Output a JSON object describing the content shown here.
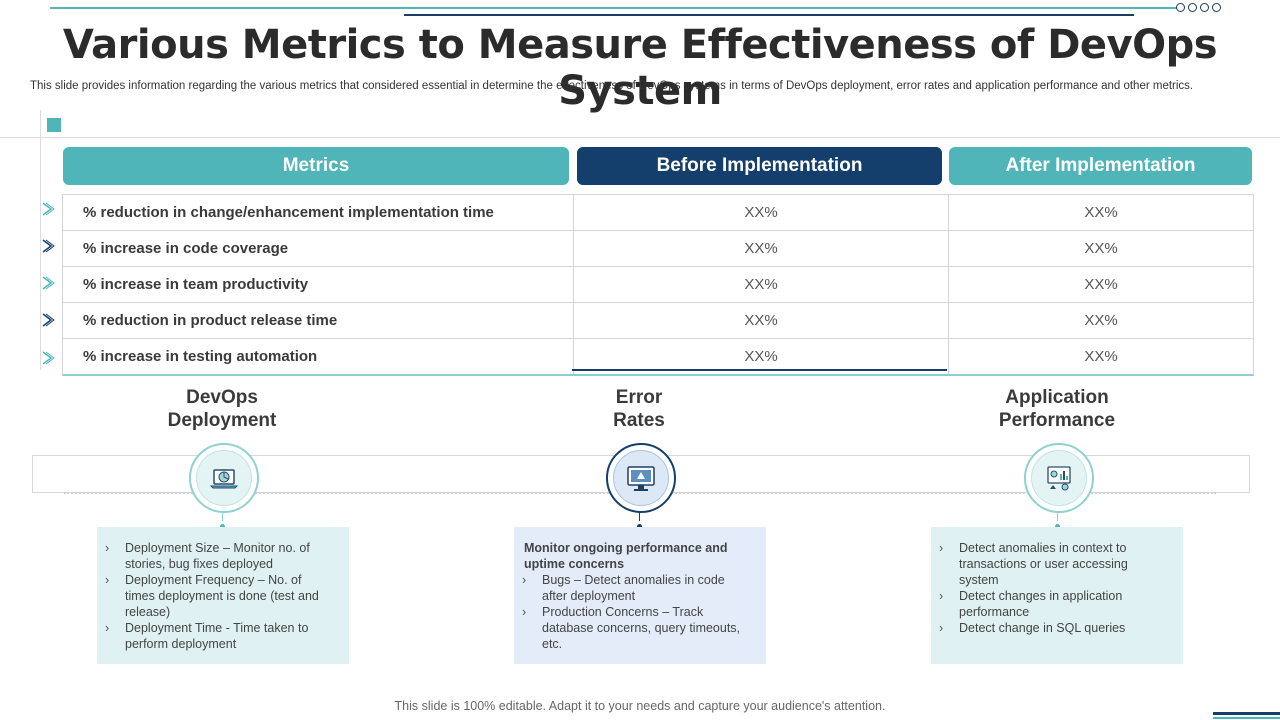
{
  "title": "Various Metrics to Measure Effectiveness of DevOps System",
  "subtitle": "This slide provides information regarding the various metrics that considered essential in determine the effectiveness of DevOps systems in terms of DevOps deployment, error rates and application performance and other metrics.",
  "table": {
    "headers": {
      "metrics": "Metrics",
      "before": "Before Implementation",
      "after": "After Implementation"
    },
    "rows": [
      {
        "metric": "% reduction in change/enhancement implementation time",
        "before": "XX%",
        "after": "XX%"
      },
      {
        "metric": "% increase in code coverage",
        "before": "XX%",
        "after": "XX%"
      },
      {
        "metric": "% increase in team productivity",
        "before": "XX%",
        "after": "XX%"
      },
      {
        "metric": "% reduction in product release time",
        "before": "XX%",
        "after": "XX%"
      },
      {
        "metric": "% increase in testing automation",
        "before": "XX%",
        "after": "XX%"
      }
    ]
  },
  "sections": [
    {
      "title_line1": "DevOps",
      "title_line2": "Deployment",
      "icon": "laptop-chart-icon",
      "items": [
        "Deployment Size – Monitor no. of stories, bug fixes deployed",
        "Deployment Frequency – No. of times deployment  is done (test and release)",
        "Deployment Time  - Time taken to perform deployment"
      ]
    },
    {
      "title_line1": "Error",
      "title_line2": "Rates",
      "icon": "monitor-warning-icon",
      "lead": "Monitor ongoing performance and uptime concerns",
      "items": [
        "Bugs – Detect anomalies in code after deployment",
        "Production Concerns – Track database concerns, query timeouts, etc."
      ]
    },
    {
      "title_line1": "Application",
      "title_line2": "Performance",
      "icon": "analytics-dashboard-icon",
      "items": [
        "Detect anomalies in context to transactions or user accessing system",
        "Detect changes in application performance",
        "Detect change in SQL queries"
      ]
    }
  ],
  "footer": "This slide is 100% editable. Adapt it to your needs and capture your audience's attention.",
  "colors": {
    "teal": "#4fb5b8",
    "navy": "#143e6b",
    "teal_light": "#dff1f2",
    "blue_light": "#e3ecf8"
  }
}
